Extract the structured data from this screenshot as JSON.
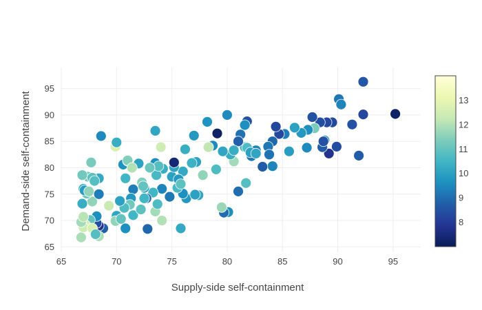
{
  "chart_data": {
    "type": "scatter",
    "title": "",
    "xlabel": "Supply-side self-containment",
    "ylabel": "Demand-side self-containment",
    "xlim": [
      65,
      97.5
    ],
    "ylim": [
      64,
      99
    ],
    "xticks": [
      65,
      70,
      75,
      80,
      85,
      90,
      95
    ],
    "yticks": [
      65,
      70,
      75,
      80,
      85,
      90,
      95
    ],
    "grid": true,
    "colorbar": {
      "colorscale": "YlGnBu",
      "range": [
        7,
        14
      ],
      "ticks": [
        8,
        9,
        10,
        11,
        12,
        13
      ],
      "palette": [
        "#081d58",
        "#253494",
        "#225ea8",
        "#1d91c0",
        "#41b6c4",
        "#7fcdbb",
        "#c7e9b4",
        "#edf8b1",
        "#ffffd9"
      ]
    },
    "x": [
      92.3,
      95.2,
      92.3,
      90.1,
      90.3,
      89.5,
      91.3,
      89.0,
      88.4,
      87.7,
      88.8,
      89.2,
      91.9,
      89.9,
      88.6,
      88.7,
      87.9,
      87.3,
      87.2,
      86.7,
      86.1,
      85.2,
      85.2,
      84.7,
      85.6,
      84.4,
      84.1,
      84.1,
      83.7,
      83.2,
      83.8,
      82.6,
      82.2,
      81.6,
      81.2,
      81.0,
      81.8,
      81.6,
      80.6,
      80.3,
      80.0,
      81.7,
      81.8,
      82.1,
      82.6,
      81.0,
      80.1,
      79.7,
      79.5,
      79.0,
      78.7,
      78.2,
      78.3,
      79.1,
      79.6,
      80.6,
      77.8,
      77.2,
      77.0,
      76.8,
      76.2,
      76.0,
      77.4,
      76.3,
      76.0,
      75.5,
      75.0,
      75.2,
      75.6,
      74.8,
      75.2,
      74.2,
      74.1,
      74.0,
      73.5,
      73.3,
      73.6,
      73.5,
      73.8,
      73.0,
      72.7,
      72.3,
      72.5,
      72.0,
      71.5,
      71.3,
      71.2,
      70.8,
      70.6,
      70.7,
      70.3,
      70.0,
      69.9,
      70.4,
      70.8,
      71.5,
      71.0,
      68.6,
      69.9,
      70.0,
      68.8,
      68.4,
      68.2,
      68.2,
      68.4,
      67.8,
      67.7,
      67.4,
      67.3,
      67.0,
      66.9,
      67.1,
      67.5,
      67.6,
      67.2,
      67.0,
      66.8,
      66.8,
      67.8,
      69.3,
      72.2,
      72.8,
      74.1,
      75.8,
      77.1,
      75.8,
      73.5,
      72.5,
      73.7,
      71.0,
      71.4,
      68.4,
      68.1,
      66.9,
      67.0,
      67.8,
      68.0,
      68.4,
      72.4
    ],
    "y": [
      96.3,
      90.2,
      90.1,
      93.0,
      92.0,
      88.6,
      88.2,
      88.6,
      88.6,
      89.6,
      85.2,
      82.7,
      82.3,
      84.0,
      83.9,
      85.0,
      87.5,
      87.2,
      83.8,
      86.6,
      87.6,
      86.5,
      86.4,
      86.4,
      83.1,
      87.8,
      85.0,
      80.3,
      84.0,
      80.2,
      82.5,
      83.3,
      82.2,
      83.9,
      86.3,
      85.0,
      88.8,
      88.1,
      81.2,
      82.5,
      90.0,
      77.1,
      83.8,
      82.9,
      82.7,
      75.5,
      71.6,
      71.5,
      72.5,
      79.7,
      84.2,
      88.7,
      83.9,
      86.5,
      83.1,
      83.3,
      78.6,
      81.1,
      86.1,
      80.9,
      83.5,
      79.3,
      74.8,
      74.2,
      75.1,
      76.2,
      78.3,
      80.1,
      77.8,
      74.5,
      81.0,
      79.8,
      76.0,
      83.9,
      87.0,
      75.3,
      78.6,
      80.9,
      80.3,
      80.0,
      74.2,
      77.2,
      76.2,
      80.8,
      75.9,
      74.2,
      73.0,
      78.0,
      80.6,
      72.4,
      73.7,
      70.9,
      69.9,
      70.3,
      68.5,
      71.0,
      81.3,
      86.0,
      84.0,
      84.8,
      68.5,
      69.0,
      69.5,
      70.8,
      67.0,
      73.6,
      81.0,
      78.3,
      75.1,
      76.0,
      78.6,
      75.7,
      75.5,
      70.1,
      69.1,
      68.7,
      69.7,
      66.8,
      68.5,
      72.8,
      72.1,
      68.4,
      70.0,
      68.5,
      74.9,
      76.9,
      71.7,
      74.2,
      73.1,
      81.4,
      80.0,
      78.0,
      67.4,
      73.2,
      70.7,
      78.1,
      77.5,
      75.0,
      76.5
    ],
    "color": [
      8.6,
      7.2,
      8.3,
      9.2,
      9.4,
      8.3,
      8.5,
      8.3,
      8.4,
      8.5,
      9.5,
      7.8,
      8.7,
      8.4,
      8.7,
      8.5,
      11.3,
      9.6,
      9.5,
      9.8,
      10.0,
      9.8,
      9.3,
      8.3,
      9.9,
      8.3,
      8.9,
      9.4,
      9.2,
      8.7,
      9.1,
      9.4,
      9.2,
      10.4,
      9.1,
      8.8,
      8.5,
      9.6,
      11.8,
      10.3,
      9.5,
      10.8,
      10.7,
      10.0,
      10.1,
      9.0,
      9.6,
      9.0,
      11.7,
      10.7,
      9.5,
      9.7,
      12.2,
      7.2,
      10.1,
      10.3,
      11.6,
      10.0,
      9.8,
      10.4,
      10.3,
      10.2,
      10.1,
      9.8,
      9.6,
      10.6,
      10.0,
      10.1,
      9.8,
      9.2,
      7.4,
      10.3,
      9.4,
      12.4,
      10.1,
      10.5,
      10.6,
      9.6,
      10.8,
      11.1,
      8.9,
      11.4,
      9.9,
      10.0,
      9.3,
      9.8,
      11.2,
      10.5,
      9.7,
      10.7,
      10.0,
      10.1,
      11.6,
      11.0,
      9.6,
      10.5,
      11.8,
      9.5,
      12.7,
      10.3,
      8.8,
      7.8,
      8.4,
      9.6,
      11.9,
      11.6,
      11.3,
      11.2,
      11.1,
      10.4,
      11.2,
      9.9,
      11.6,
      11.0,
      12.5,
      12.4,
      11.8,
      11.9,
      12.6,
      12.3,
      10.9,
      8.9,
      12.0,
      10.2,
      10.0,
      10.9,
      11.8,
      10.5,
      10.7,
      11.4,
      12.0,
      10.2,
      10.8,
      10.3,
      12.1,
      10.9,
      10.8,
      9.3,
      11.0
    ]
  }
}
